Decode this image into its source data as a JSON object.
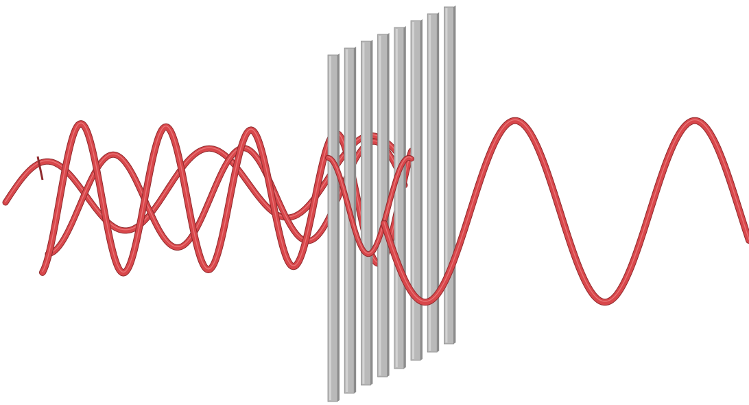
{
  "diagram": {
    "subject": "polarization-filter",
    "background_color": "#ffffff",
    "wave_color": "#d8474b",
    "wave_shadow_color": "#8f2a2d",
    "wave_highlight_color": "#f08a8b",
    "slat_color": "#b9b9b9",
    "slat_edge_color": "#8c8c8c",
    "slat_highlight_color": "#d9d9d9",
    "slat_count": 8,
    "incoming_wave_planes": 3,
    "outgoing_wave_planes": 1
  }
}
